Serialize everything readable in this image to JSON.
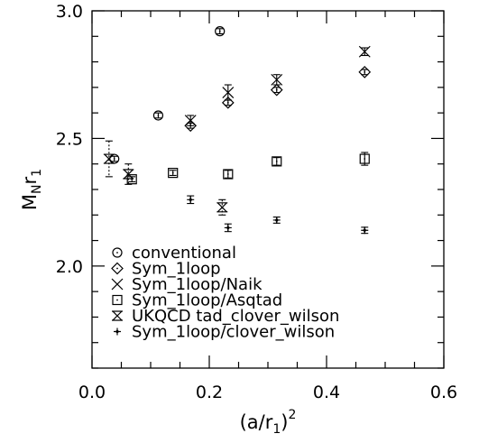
{
  "chart_data": {
    "type": "scatter",
    "title": "",
    "xlabel": "(a/r",
    "xlabel_sub": "1",
    "xlabel_sup": "2",
    "xlabel_tail": ")",
    "ylabel": "M",
    "ylabel_sub1": "N",
    "ylabel_mid": "r",
    "ylabel_sub2": "1",
    "xlim": [
      0.0,
      0.6
    ],
    "ylim": [
      1.6,
      3.0
    ],
    "xticks": [
      "0.0",
      "0.2",
      "0.4",
      "0.6"
    ],
    "yticks": [
      "2.0",
      "2.5",
      "3.0"
    ],
    "legend_position": "bottom-left",
    "grid": false,
    "series": [
      {
        "name": "conventional",
        "marker": "circle",
        "points": [
          {
            "x": 0.038,
            "y": 2.42,
            "err": 0.01
          },
          {
            "x": 0.113,
            "y": 2.59,
            "err": 0.01
          },
          {
            "x": 0.218,
            "y": 2.92,
            "err": 0.01
          }
        ]
      },
      {
        "name": "Sym_1loop",
        "marker": "diamond",
        "points": [
          {
            "x": 0.168,
            "y": 2.55,
            "err": 0.01
          },
          {
            "x": 0.232,
            "y": 2.64,
            "err": 0.01
          },
          {
            "x": 0.315,
            "y": 2.69,
            "err": 0.01
          },
          {
            "x": 0.465,
            "y": 2.76,
            "err": 0.01
          }
        ]
      },
      {
        "name": "Sym_1loop/Naik",
        "marker": "x",
        "points": [
          {
            "x": 0.168,
            "y": 2.57,
            "err": 0.02
          },
          {
            "x": 0.232,
            "y": 2.68,
            "err": 0.03
          },
          {
            "x": 0.315,
            "y": 2.73,
            "err": 0.02
          },
          {
            "x": 0.465,
            "y": 2.84,
            "err": 0.015
          }
        ]
      },
      {
        "name": "Sym_1loop/Asqtad",
        "marker": "square",
        "points": [
          {
            "x": 0.068,
            "y": 2.34,
            "err": 0.01
          },
          {
            "x": 0.138,
            "y": 2.365,
            "err": 0.01
          },
          {
            "x": 0.232,
            "y": 2.36,
            "err": 0.015
          },
          {
            "x": 0.315,
            "y": 2.41,
            "err": 0.015
          },
          {
            "x": 0.465,
            "y": 2.42,
            "err": 0.025
          }
        ]
      },
      {
        "name": "UKQCD tad_clover_wilson",
        "marker": "square-x",
        "dashed_err": true,
        "points": [
          {
            "x": 0.029,
            "y": 2.42,
            "err": 0.07
          },
          {
            "x": 0.062,
            "y": 2.36,
            "err": 0.04
          },
          {
            "x": 0.222,
            "y": 2.23,
            "err": 0.03
          }
        ]
      },
      {
        "name": "Sym_1loop/clover_wilson",
        "marker": "cross",
        "points": [
          {
            "x": 0.168,
            "y": 2.26,
            "err": 0.015
          },
          {
            "x": 0.232,
            "y": 2.15,
            "err": 0.015
          },
          {
            "x": 0.315,
            "y": 2.18,
            "err": 0.012
          },
          {
            "x": 0.465,
            "y": 2.14,
            "err": 0.012
          }
        ]
      }
    ]
  }
}
